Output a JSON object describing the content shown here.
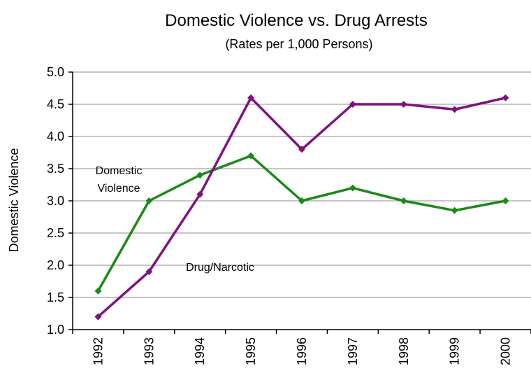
{
  "chart_data": {
    "type": "line",
    "title": "Domestic Violence vs. Drug Arrests",
    "subtitle": "(Rates per 1,000 Persons)",
    "ylabel": "Domestic Violence",
    "xlabel": "",
    "ylim": [
      1.0,
      5.0
    ],
    "yticks": [
      "1.0",
      "1.5",
      "2.0",
      "2.5",
      "3.0",
      "3.5",
      "4.0",
      "4.5",
      "5.0"
    ],
    "categories": [
      "1992",
      "1993",
      "1994",
      "1995",
      "1996",
      "1997",
      "1998",
      "1999",
      "2000"
    ],
    "grid": true,
    "series": [
      {
        "name": "Domestic Violence",
        "label_lines": [
          "Domestic",
          "Violence"
        ],
        "color": "#1a8a16",
        "values": [
          1.6,
          3.0,
          3.4,
          3.7,
          3.0,
          3.2,
          3.0,
          2.85,
          3.0
        ]
      },
      {
        "name": "Drug/Narcotic",
        "label_lines": [
          "Drug/Narcotic"
        ],
        "color": "#7f127f",
        "values": [
          1.2,
          1.9,
          3.1,
          4.6,
          3.8,
          4.5,
          4.5,
          4.42,
          4.6
        ]
      }
    ]
  }
}
